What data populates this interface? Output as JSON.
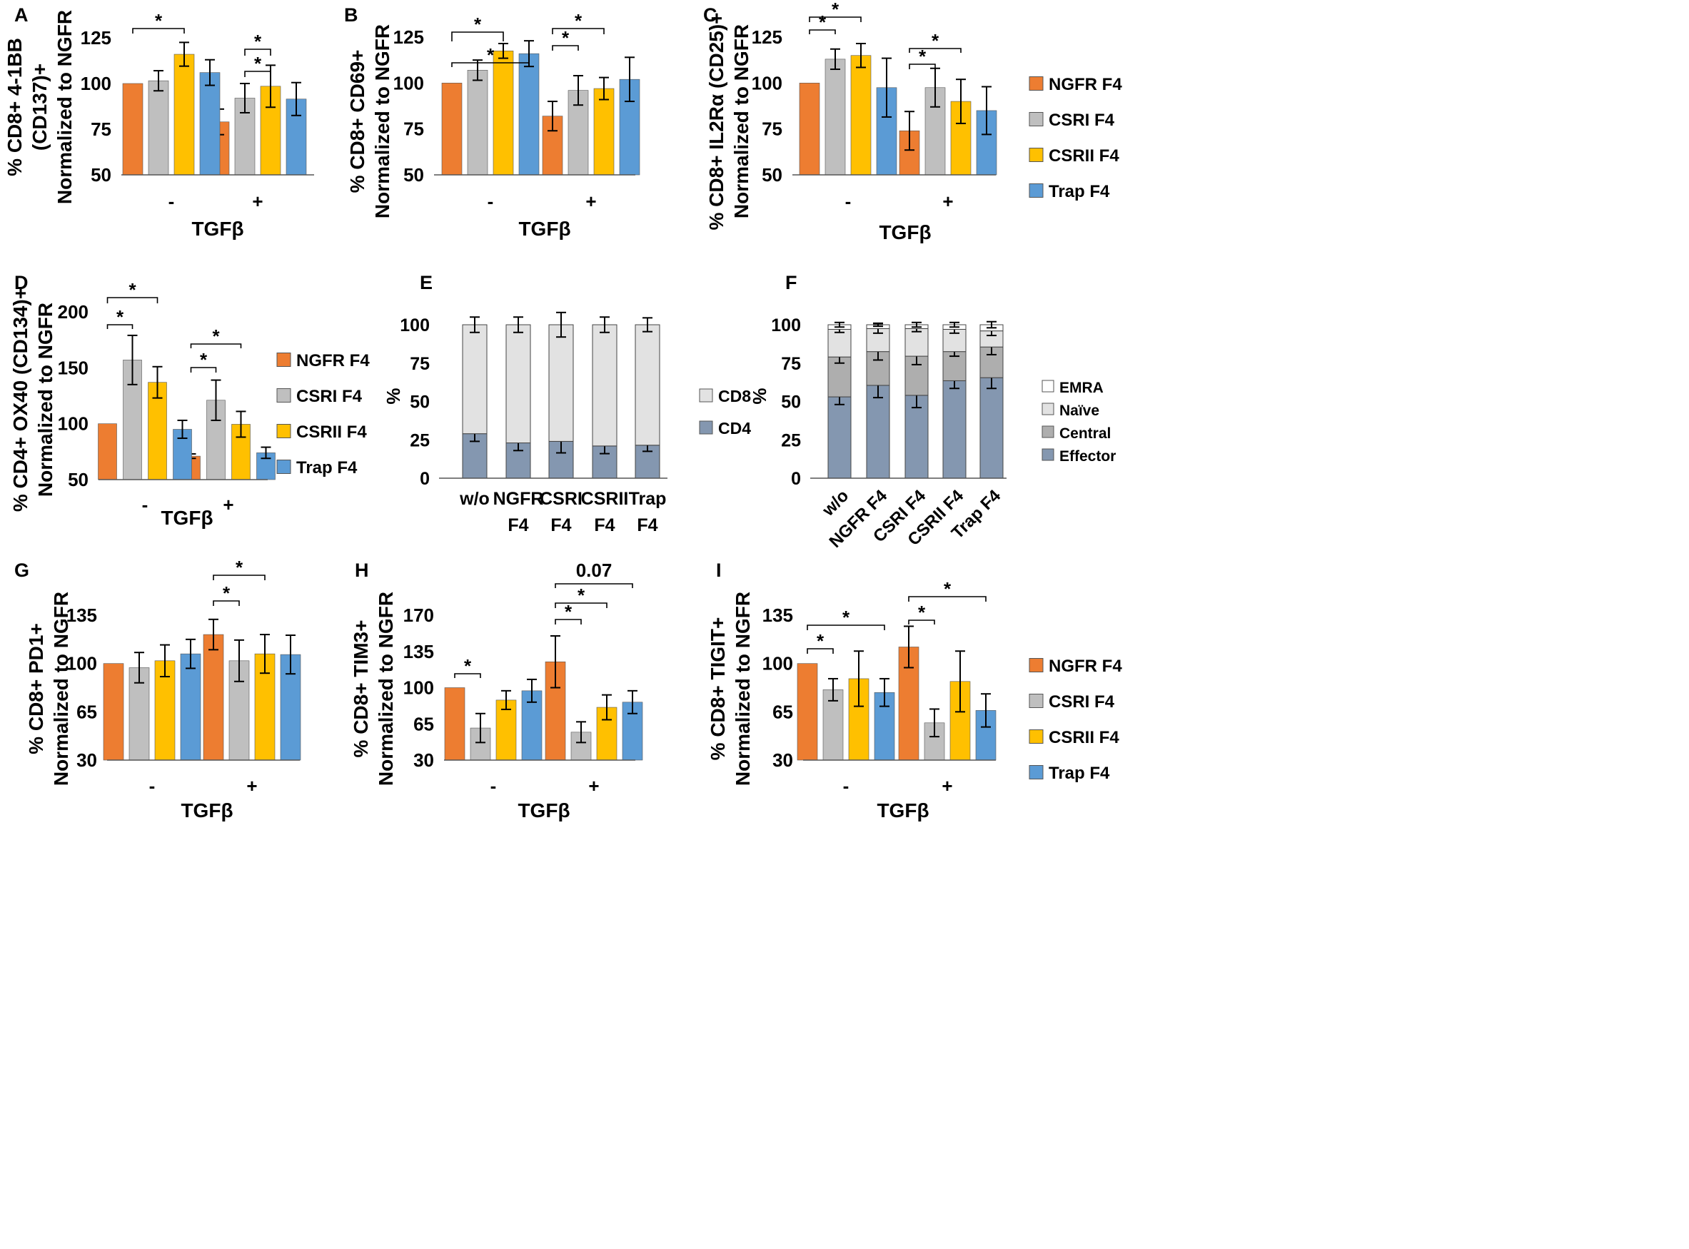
{
  "colors": {
    "NGFR F4": "#ED7D31",
    "CSRI F4": "#BFBFBF",
    "CSRII F4": "#FFC000",
    "Trap F4": "#5B9BD5",
    "CD8": "#E2E2E2",
    "CD4": "#8497B0",
    "EMRA": "#FFFFFF",
    "Naïve": "#E2E2E2",
    "Central": "#AEAEAE",
    "Effector": "#8497B0"
  },
  "chart_data": [
    {
      "id": "A",
      "type": "bar",
      "panel_label": "A",
      "ylabel": [
        "% CD8+ 4-1BB",
        "(CD137)+",
        "Normalized to NGFR"
      ],
      "xlabel": "TGFβ",
      "categories": [
        "-",
        "+"
      ],
      "ylim": [
        50,
        125
      ],
      "yticks": [
        50,
        75,
        100,
        125
      ],
      "series": [
        {
          "name": "NGFR F4",
          "values": [
            100,
            79
          ],
          "errors": [
            0,
            7
          ]
        },
        {
          "name": "CSRI F4",
          "values": [
            101.5,
            92
          ],
          "errors": [
            5.5,
            8
          ]
        },
        {
          "name": "CSRII F4",
          "values": [
            116,
            98.5
          ],
          "errors": [
            6.5,
            11.5
          ]
        },
        {
          "name": "Trap F4",
          "values": [
            106,
            91.5
          ],
          "errors": [
            7,
            9
          ]
        }
      ],
      "significance": [
        {
          "group": 0,
          "from": 0,
          "to": 2,
          "label": "*"
        },
        {
          "group": 1,
          "from": 1,
          "to": 2,
          "label": "*"
        },
        {
          "group": 1,
          "from": 1,
          "to": 2,
          "label": "*",
          "start": 0
        }
      ]
    },
    {
      "id": "B",
      "type": "bar",
      "panel_label": "B",
      "ylabel": [
        "% CD8+ CD69+",
        "Normalized to NGFR"
      ],
      "xlabel": "TGFβ",
      "categories": [
        "-",
        "+"
      ],
      "ylim": [
        50,
        125
      ],
      "yticks": [
        50,
        75,
        100,
        125
      ],
      "series": [
        {
          "name": "NGFR F4",
          "values": [
            100,
            82
          ],
          "errors": [
            0,
            8
          ]
        },
        {
          "name": "CSRI F4",
          "values": [
            107,
            96
          ],
          "errors": [
            5.5,
            8
          ]
        },
        {
          "name": "CSRII F4",
          "values": [
            117.5,
            97
          ],
          "errors": [
            4,
            6
          ]
        },
        {
          "name": "Trap F4",
          "values": [
            116,
            102
          ],
          "errors": [
            7,
            12
          ]
        }
      ],
      "significance": [
        {
          "group": 0,
          "from": 0,
          "to": 2,
          "label": "*"
        },
        {
          "group": 0,
          "from": 0,
          "to": 3,
          "label": "*"
        },
        {
          "group": 1,
          "from": 0,
          "to": 1,
          "label": "*"
        },
        {
          "group": 1,
          "from": 0,
          "to": 2,
          "label": "*"
        },
        {
          "group": 1,
          "from": 0,
          "to": 3,
          "label": "*"
        }
      ]
    },
    {
      "id": "C",
      "type": "bar",
      "panel_label": "C",
      "ylabel": [
        "% CD8+ IL2Rα (CD25)+",
        "Normalized to NGFR"
      ],
      "xlabel": "TGFβ",
      "categories": [
        "-",
        "+"
      ],
      "ylim": [
        50,
        125
      ],
      "yticks": [
        50,
        75,
        100,
        125
      ],
      "series": [
        {
          "name": "NGFR F4",
          "values": [
            100,
            74
          ],
          "errors": [
            0,
            10.5
          ]
        },
        {
          "name": "CSRI F4",
          "values": [
            113,
            97.5
          ],
          "errors": [
            5.5,
            10.5
          ]
        },
        {
          "name": "CSRII F4",
          "values": [
            115,
            90
          ],
          "errors": [
            6.5,
            12
          ]
        },
        {
          "name": "Trap F4",
          "values": [
            97.5,
            85
          ],
          "errors": [
            16,
            13
          ]
        }
      ],
      "significance": [
        {
          "group": 0,
          "from": 0,
          "to": 1,
          "label": "*"
        },
        {
          "group": 0,
          "from": 0,
          "to": 2,
          "label": "*"
        },
        {
          "group": 1,
          "from": 0,
          "to": 1,
          "label": "*"
        },
        {
          "group": 1,
          "from": 0,
          "to": 2,
          "label": "*"
        }
      ],
      "legend": [
        "NGFR F4",
        "CSRI F4",
        "CSRII F4",
        "Trap F4"
      ]
    },
    {
      "id": "D",
      "type": "bar",
      "panel_label": "D",
      "ylabel": [
        "% CD4+ OX40 (CD134)+",
        "Normalized to NGFR"
      ],
      "xlabel": "TGFβ",
      "categories": [
        "-",
        "+"
      ],
      "ylim": [
        50,
        200
      ],
      "yticks": [
        50,
        100,
        150,
        200
      ],
      "series": [
        {
          "name": "NGFR F4",
          "values": [
            100,
            71
          ],
          "errors": [
            0,
            2
          ]
        },
        {
          "name": "CSRI F4",
          "values": [
            157,
            121
          ],
          "errors": [
            22,
            18
          ]
        },
        {
          "name": "CSRII F4",
          "values": [
            137,
            99.5
          ],
          "errors": [
            14,
            11.5
          ]
        },
        {
          "name": "Trap F4",
          "values": [
            95,
            74
          ],
          "errors": [
            8,
            5
          ]
        }
      ],
      "significance": [
        {
          "group": 0,
          "from": 0,
          "to": 1,
          "label": "*"
        },
        {
          "group": 0,
          "from": 0,
          "to": 2,
          "label": "*"
        },
        {
          "group": 1,
          "from": 0,
          "to": 1,
          "label": "*"
        },
        {
          "group": 1,
          "from": 0,
          "to": 2,
          "label": "*"
        }
      ],
      "legend": [
        "NGFR F4",
        "CSRI F4",
        "CSRII F4",
        "Trap F4"
      ]
    },
    {
      "id": "E",
      "type": "stacked-bar",
      "panel_label": "E",
      "ylabel": "%",
      "categories": [
        "w/o",
        "NGFR F4",
        "CSRI F4",
        "CSRII F4",
        "Trap F4"
      ],
      "category_lines": [
        [
          "w/o"
        ],
        [
          "NGFR",
          "F4"
        ],
        [
          "CSRI",
          "F4"
        ],
        [
          "CSRII",
          "F4"
        ],
        [
          "Trap",
          "F4"
        ]
      ],
      "ylim": [
        0,
        100
      ],
      "yticks": [
        0,
        25,
        50,
        75,
        100
      ],
      "series": [
        {
          "name": "CD4",
          "values": [
            29,
            23,
            24,
            21,
            21.5
          ],
          "errors": [
            5,
            5,
            7.5,
            5,
            4
          ]
        },
        {
          "name": "CD8",
          "values": [
            71,
            77,
            76,
            79,
            78.5
          ],
          "errors": [
            5,
            5,
            8,
            5,
            4.5
          ]
        }
      ],
      "legend": [
        "CD8",
        "CD4"
      ]
    },
    {
      "id": "F",
      "type": "stacked-bar",
      "panel_label": "F",
      "ylabel": "%",
      "categories": [
        "w/o",
        "NGFR F4",
        "CSRI F4",
        "CSRII F4",
        "Trap F4"
      ],
      "ylim": [
        0,
        100
      ],
      "yticks": [
        0,
        25,
        50,
        75,
        100
      ],
      "series": [
        {
          "name": "Effector",
          "values": [
            53,
            60.5,
            54,
            63.5,
            65.5
          ],
          "errors": [
            5,
            8,
            8,
            5,
            7
          ]
        },
        {
          "name": "Central",
          "values": [
            26,
            22,
            25.5,
            19,
            20
          ],
          "errors": [
            4,
            5.5,
            5.5,
            3,
            5
          ]
        },
        {
          "name": "Naïve",
          "values": [
            18,
            15,
            18,
            14.5,
            10.5
          ],
          "errors": [
            2,
            3,
            2,
            2.5,
            3
          ]
        },
        {
          "name": "EMRA",
          "values": [
            3,
            2.5,
            2.5,
            3,
            4
          ],
          "errors": [
            1.5,
            1,
            1.5,
            1.5,
            2
          ]
        }
      ],
      "legend": [
        "EMRA",
        "Naïve",
        "Central",
        "Effector"
      ]
    },
    {
      "id": "G",
      "type": "bar",
      "panel_label": "G",
      "ylabel": [
        "% CD8+ PD1+",
        "Normalized to NGFR"
      ],
      "xlabel": "TGFβ",
      "categories": [
        "-",
        "+"
      ],
      "ylim": [
        30,
        135
      ],
      "yticks": [
        30,
        65,
        100,
        135
      ],
      "series": [
        {
          "name": "NGFR F4",
          "values": [
            100,
            121
          ],
          "errors": [
            0,
            11
          ]
        },
        {
          "name": "CSRI F4",
          "values": [
            97,
            102
          ],
          "errors": [
            11,
            15
          ]
        },
        {
          "name": "CSRII F4",
          "values": [
            102,
            107
          ],
          "errors": [
            11.5,
            14
          ]
        },
        {
          "name": "Trap F4",
          "values": [
            107,
            106.5
          ],
          "errors": [
            10.5,
            14
          ]
        }
      ],
      "significance": [
        {
          "group": 1,
          "from": 0,
          "to": 1,
          "label": "*"
        },
        {
          "group": 1,
          "from": 0,
          "to": 2,
          "label": "*"
        }
      ]
    },
    {
      "id": "H",
      "type": "bar",
      "panel_label": "H",
      "ylabel": [
        "% CD8+ TIM3+",
        "Normalized to NGFR"
      ],
      "xlabel": "TGFβ",
      "categories": [
        "-",
        "+"
      ],
      "ylim": [
        30,
        170
      ],
      "yticks": [
        30,
        65,
        100,
        135,
        170
      ],
      "series": [
        {
          "name": "NGFR F4",
          "values": [
            100,
            125
          ],
          "errors": [
            0,
            25
          ]
        },
        {
          "name": "CSRI F4",
          "values": [
            61,
            57
          ],
          "errors": [
            14,
            10
          ]
        },
        {
          "name": "CSRII F4",
          "values": [
            88,
            81
          ],
          "errors": [
            9,
            12
          ]
        },
        {
          "name": "Trap F4",
          "values": [
            97,
            86
          ],
          "errors": [
            11,
            11
          ]
        }
      ],
      "significance": [
        {
          "group": 0,
          "from": 0,
          "to": 1,
          "label": "*"
        },
        {
          "group": 1,
          "from": 0,
          "to": 1,
          "label": "*"
        },
        {
          "group": 1,
          "from": 0,
          "to": 2,
          "label": "*"
        },
        {
          "group": 1,
          "from": 0,
          "to": 3,
          "label": "0.07"
        }
      ]
    },
    {
      "id": "I",
      "type": "bar",
      "panel_label": "I",
      "ylabel": [
        "% CD8+ TIGIT+",
        "Normalized to NGFR"
      ],
      "xlabel": "TGFβ",
      "categories": [
        "-",
        "+"
      ],
      "ylim": [
        30,
        135
      ],
      "yticks": [
        30,
        65,
        100,
        135
      ],
      "series": [
        {
          "name": "NGFR F4",
          "values": [
            100,
            112
          ],
          "errors": [
            0,
            15
          ]
        },
        {
          "name": "CSRI F4",
          "values": [
            81,
            57
          ],
          "errors": [
            8,
            10
          ]
        },
        {
          "name": "CSRII F4",
          "values": [
            89,
            87
          ],
          "errors": [
            20,
            22
          ]
        },
        {
          "name": "Trap F4",
          "values": [
            79,
            66
          ],
          "errors": [
            10,
            12
          ]
        }
      ],
      "significance": [
        {
          "group": 0,
          "from": 0,
          "to": 1,
          "label": "*"
        },
        {
          "group": 0,
          "from": 0,
          "to": 3,
          "label": "*"
        },
        {
          "group": 1,
          "from": 0,
          "to": 1,
          "label": "*"
        },
        {
          "group": 1,
          "from": 0,
          "to": 3,
          "label": "*"
        }
      ],
      "legend": [
        "NGFR F4",
        "CSRI F4",
        "CSRII F4",
        "Trap F4"
      ]
    }
  ]
}
